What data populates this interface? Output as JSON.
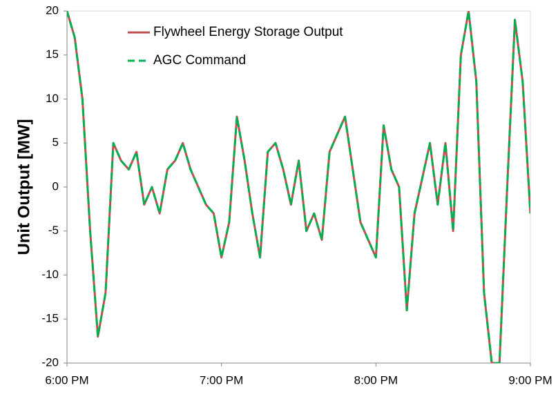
{
  "chart_data": {
    "type": "line",
    "y_label": "Unit Output [MW]",
    "x": [
      18.0,
      18.05,
      18.1,
      18.15,
      18.2,
      18.25,
      18.3,
      18.35,
      18.4,
      18.45,
      18.5,
      18.55,
      18.6,
      18.65,
      18.7,
      18.75,
      18.8,
      18.85,
      18.9,
      18.95,
      19.0,
      19.05,
      19.1,
      19.15,
      19.2,
      19.25,
      19.3,
      19.35,
      19.4,
      19.45,
      19.5,
      19.55,
      19.6,
      19.65,
      19.7,
      19.75,
      19.8,
      19.85,
      19.9,
      19.95,
      20.0,
      20.05,
      20.1,
      20.15,
      20.2,
      20.25,
      20.3,
      20.35,
      20.4,
      20.45,
      20.5,
      20.55,
      20.6,
      20.65,
      20.7,
      20.75,
      20.8,
      20.85,
      20.9,
      20.95,
      21.0
    ],
    "series": [
      {
        "name": "Flywheel Energy Storage Output",
        "color": "#c0504d",
        "values": [
          20,
          17,
          10,
          -5,
          -17,
          -12,
          5,
          3,
          2,
          4,
          -2,
          0,
          -3,
          2,
          3,
          5,
          2,
          0,
          -2,
          -3,
          -8,
          -4,
          8,
          3,
          -3,
          -8,
          4,
          5,
          2,
          -2,
          3,
          -5,
          -3,
          -6,
          4,
          6,
          8,
          2,
          -4,
          -6,
          -8,
          7,
          2,
          0,
          -14,
          -3,
          1,
          5,
          -2,
          5,
          -5,
          15,
          20,
          12,
          -12,
          -20,
          -20,
          0,
          19,
          12,
          -3
        ]
      },
      {
        "name": "AGC Command",
        "color": "#00b050",
        "values": [
          20,
          17,
          10,
          -5,
          -17,
          -12,
          5,
          3,
          2,
          4,
          -2,
          0,
          -3,
          2,
          3,
          5,
          2,
          0,
          -2,
          -3,
          -8,
          -4,
          8,
          3,
          -3,
          -8,
          4,
          5,
          2,
          -2,
          3,
          -5,
          -3,
          -6,
          4,
          6,
          8,
          2,
          -4,
          -6,
          -8,
          7,
          2,
          0,
          -14,
          -3,
          1,
          5,
          -2,
          5,
          -5,
          15,
          20,
          12,
          -12,
          -20,
          -20,
          0,
          19,
          12,
          -3
        ]
      }
    ],
    "xlim": [
      18,
      21
    ],
    "xticks": [
      {
        "value": 18,
        "label": "6:00 PM"
      },
      {
        "value": 19,
        "label": "7:00 PM"
      },
      {
        "value": 20,
        "label": "8:00 PM"
      },
      {
        "value": 21,
        "label": "9:00 PM"
      }
    ],
    "ylim": [
      -20,
      20
    ],
    "yticks": [
      -20,
      -15,
      -10,
      -5,
      0,
      5,
      10,
      15,
      20
    ],
    "grid": false,
    "legend": "top-left"
  }
}
